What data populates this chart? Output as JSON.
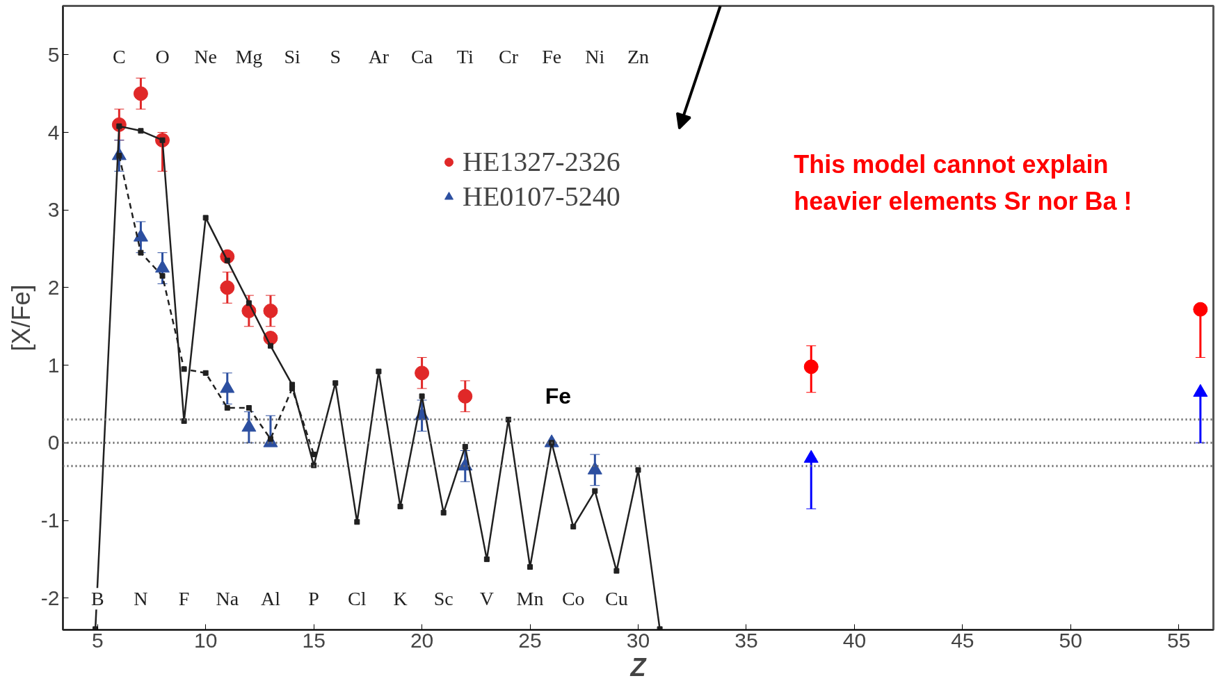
{
  "chart_data": {
    "type": "scatter",
    "xlabel": "Z",
    "ylabel": "[X/Fe]",
    "xlim": [
      3.4,
      56.6
    ],
    "ylim": [
      -2.41,
      5.63
    ],
    "xticks": [
      5,
      10,
      15,
      20,
      25,
      30,
      35,
      40,
      45,
      50,
      55
    ],
    "yticks": [
      -2,
      -1,
      0,
      1,
      2,
      3,
      4,
      5
    ],
    "grid": false,
    "legend": "top",
    "series": [
      {
        "type": "line",
        "line_style": "solid",
        "marker": "square",
        "color": "#202020",
        "x": [
          4.9,
          6,
          7,
          8,
          9,
          10,
          11,
          12,
          13,
          14,
          15,
          16,
          17,
          18,
          19,
          20,
          21,
          22,
          23,
          24,
          25,
          26,
          27,
          28,
          29,
          30,
          31
        ],
        "values": [
          -2.4,
          4.08,
          4.02,
          3.9,
          0.28,
          2.9,
          2.35,
          1.8,
          1.25,
          0.75,
          -0.29,
          0.77,
          -1.02,
          0.92,
          -0.82,
          0.6,
          -0.9,
          -0.05,
          -1.5,
          0.3,
          -1.6,
          0.0,
          -1.08,
          -0.62,
          -1.65,
          -0.35,
          -2.4
        ]
      },
      {
        "type": "line",
        "line_style": "dashed",
        "marker": "square",
        "color": "#202020",
        "x": [
          6,
          7,
          8,
          9,
          10,
          11,
          12,
          13,
          14,
          15
        ],
        "values": [
          3.7,
          2.45,
          2.15,
          0.95,
          0.9,
          0.45,
          0.45,
          0.05,
          0.7,
          -0.15
        ]
      },
      {
        "name": "HE1327-2326",
        "marker": "circle",
        "color": "#e02828",
        "x": [
          6,
          7,
          8,
          11,
          12,
          13,
          20,
          22
        ],
        "values": [
          4.1,
          4.5,
          3.9,
          2.0,
          1.7,
          1.7,
          0.9,
          0.6
        ],
        "errors": [
          0.2,
          0.2,
          [
            3.5,
            4.0
          ],
          0.2,
          0.2,
          0.2,
          0.2,
          0.2
        ]
      },
      {
        "marker": "circle",
        "color": "#e02828",
        "x": [
          11,
          13
        ],
        "values": [
          2.4,
          1.35
        ]
      },
      {
        "name": "HE0107-5240",
        "marker": "triangle",
        "color": "#2c4fa0",
        "x": [
          6,
          7,
          8,
          11,
          12,
          13,
          20,
          22,
          26,
          28
        ],
        "values": [
          3.7,
          2.65,
          2.25,
          0.7,
          0.2,
          0.0,
          0.35,
          -0.3,
          0.0,
          -0.35
        ],
        "errors": [
          0.2,
          0.2,
          0.2,
          0.2,
          0.2,
          [
            0.0,
            0.35
          ],
          0.2,
          0.2,
          null,
          0.2
        ]
      },
      {
        "marker": "circle",
        "color": "#ff0000",
        "x": [
          38,
          56
        ],
        "values": [
          0.98,
          1.72
        ],
        "errors": [
          [
            0.65,
            1.25
          ],
          [
            1.1,
            1.72
          ]
        ]
      },
      {
        "marker": "triangle",
        "color": "#0000ff",
        "x": [
          38,
          56
        ],
        "values": [
          -0.2,
          0.65
        ],
        "errors": [
          [
            -0.85,
            -0.2
          ],
          [
            0.0,
            0.65
          ]
        ]
      }
    ],
    "ref_lines": [
      {
        "axis": "y",
        "value": 0.3,
        "line_style": "dotted"
      },
      {
        "axis": "y",
        "value": 0,
        "line_style": "dotted"
      },
      {
        "axis": "y",
        "value": -0.3,
        "line_style": "dotted"
      }
    ],
    "annotations": [
      "C",
      "O",
      "Ne",
      "Mg",
      "Si",
      "S",
      "Ar",
      "Ca",
      "Ti",
      "Cr",
      "Fe",
      "Ni",
      "Zn",
      "B",
      "N",
      "F",
      "Na",
      "Al",
      "P",
      "Cl",
      "K",
      "Sc",
      "V",
      "Mn",
      "Co",
      "Cu",
      "Fe",
      "This model cannot explain\nheavier elements Sr nor Ba !"
    ]
  }
}
